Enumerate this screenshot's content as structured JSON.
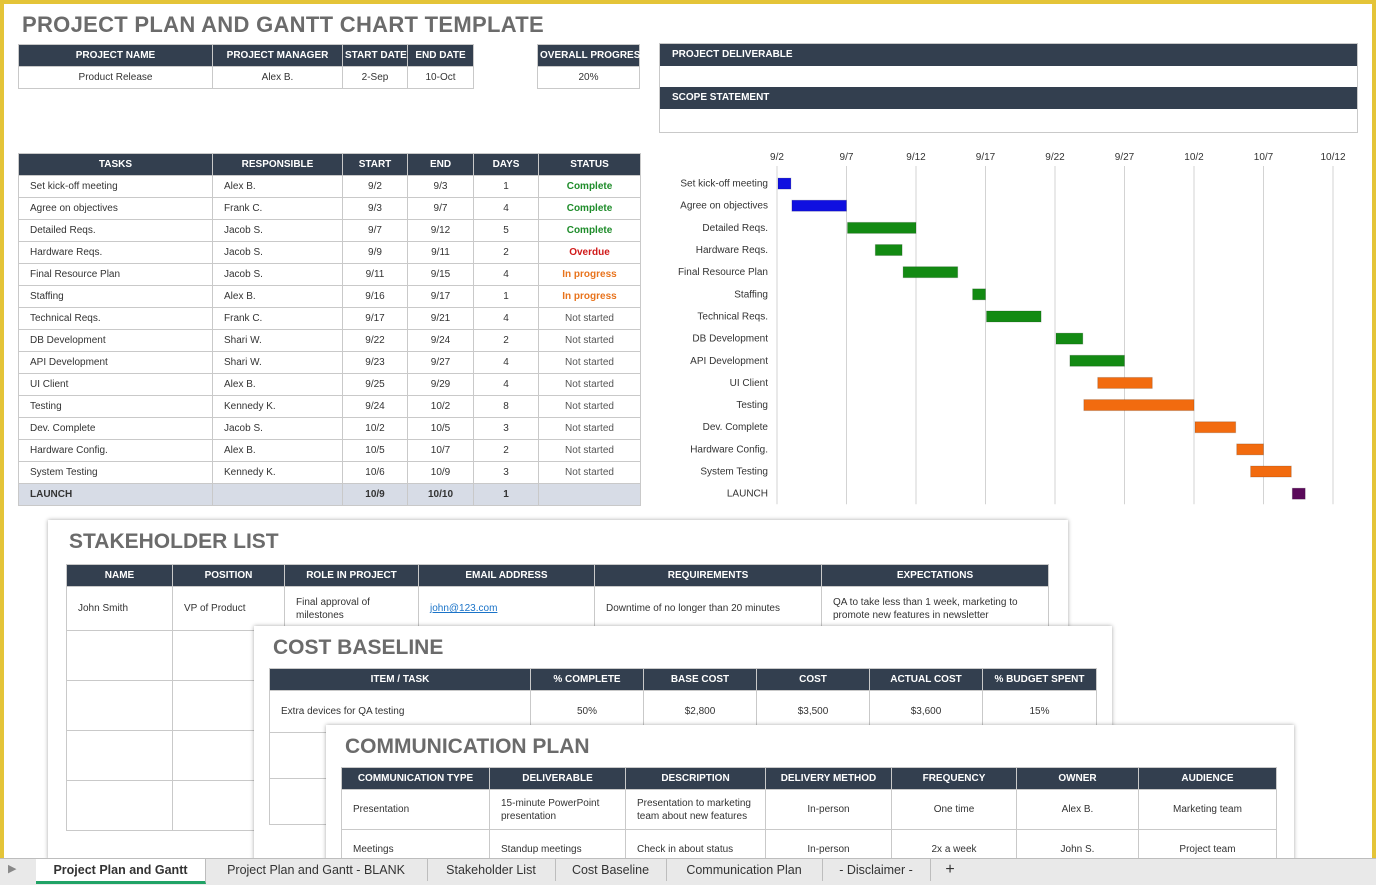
{
  "title": "PROJECT PLAN AND GANTT CHART TEMPLATE",
  "project_info": {
    "headers": [
      "PROJECT NAME",
      "PROJECT MANAGER",
      "START DATE",
      "END DATE"
    ],
    "values": [
      "Product Release",
      "Alex B.",
      "2-Sep",
      "10-Oct"
    ]
  },
  "overall_progress": {
    "header": "OVERALL PROGRESS",
    "value": "20%"
  },
  "deliverable_label": "PROJECT DELIVERABLE",
  "scope_label": "SCOPE STATEMENT",
  "tasks_table": {
    "headers": [
      "TASKS",
      "RESPONSIBLE",
      "START",
      "END",
      "DAYS",
      "STATUS"
    ],
    "rows": [
      {
        "task": "Set kick-off meeting",
        "resp": "Alex B.",
        "start": "9/2",
        "end": "9/3",
        "days": "1",
        "status": "Complete",
        "status_class": "complete"
      },
      {
        "task": "Agree on objectives",
        "resp": "Frank C.",
        "start": "9/3",
        "end": "9/7",
        "days": "4",
        "status": "Complete",
        "status_class": "complete"
      },
      {
        "task": "Detailed Reqs.",
        "resp": "Jacob S.",
        "start": "9/7",
        "end": "9/12",
        "days": "5",
        "status": "Complete",
        "status_class": "complete"
      },
      {
        "task": "Hardware Reqs.",
        "resp": "Jacob S.",
        "start": "9/9",
        "end": "9/11",
        "days": "2",
        "status": "Overdue",
        "status_class": "overdue"
      },
      {
        "task": "Final Resource Plan",
        "resp": "Jacob S.",
        "start": "9/11",
        "end": "9/15",
        "days": "4",
        "status": "In progress",
        "status_class": "progress"
      },
      {
        "task": "Staffing",
        "resp": "Alex B.",
        "start": "9/16",
        "end": "9/17",
        "days": "1",
        "status": "In progress",
        "status_class": "progress"
      },
      {
        "task": "Technical Reqs.",
        "resp": "Frank C.",
        "start": "9/17",
        "end": "9/21",
        "days": "4",
        "status": "Not started",
        "status_class": "notstarted"
      },
      {
        "task": "DB Development",
        "resp": "Shari W.",
        "start": "9/22",
        "end": "9/24",
        "days": "2",
        "status": "Not started",
        "status_class": "notstarted"
      },
      {
        "task": "API Development",
        "resp": "Shari W.",
        "start": "9/23",
        "end": "9/27",
        "days": "4",
        "status": "Not started",
        "status_class": "notstarted"
      },
      {
        "task": "UI Client",
        "resp": "Alex B.",
        "start": "9/25",
        "end": "9/29",
        "days": "4",
        "status": "Not started",
        "status_class": "notstarted"
      },
      {
        "task": "Testing",
        "resp": "Kennedy K.",
        "start": "9/24",
        "end": "10/2",
        "days": "8",
        "status": "Not started",
        "status_class": "notstarted"
      },
      {
        "task": "Dev. Complete",
        "resp": "Jacob S.",
        "start": "10/2",
        "end": "10/5",
        "days": "3",
        "status": "Not started",
        "status_class": "notstarted"
      },
      {
        "task": "Hardware Config.",
        "resp": "Alex B.",
        "start": "10/5",
        "end": "10/7",
        "days": "2",
        "status": "Not started",
        "status_class": "notstarted"
      },
      {
        "task": "System Testing",
        "resp": "Kennedy K.",
        "start": "10/6",
        "end": "10/9",
        "days": "3",
        "status": "Not started",
        "status_class": "notstarted"
      }
    ],
    "launch": {
      "task": "LAUNCH",
      "resp": "",
      "start": "10/9",
      "end": "10/10",
      "days": "1",
      "status": ""
    }
  },
  "chart_data": {
    "type": "bar",
    "orientation": "horizontal-gantt",
    "x_ticks": [
      "9/2",
      "9/7",
      "9/12",
      "9/17",
      "9/22",
      "9/27",
      "10/2",
      "10/7",
      "10/12"
    ],
    "xlim": [
      "9/2",
      "10/12"
    ],
    "grid": true,
    "categories": [
      "Set kick-off meeting",
      "Agree on objectives",
      "Detailed Reqs.",
      "Hardware Reqs.",
      "Final Resource Plan",
      "Staffing",
      "Technical Reqs.",
      "DB Development",
      "API Development",
      "UI Client",
      "Testing",
      "Dev. Complete",
      "Hardware Config.",
      "System Testing",
      "LAUNCH"
    ],
    "start": [
      "9/2",
      "9/3",
      "9/7",
      "9/9",
      "9/11",
      "9/16",
      "9/17",
      "9/22",
      "9/23",
      "9/25",
      "9/24",
      "10/2",
      "10/5",
      "10/6",
      "10/9"
    ],
    "end": [
      "9/3",
      "9/7",
      "9/12",
      "9/11",
      "9/15",
      "9/17",
      "9/21",
      "9/24",
      "9/27",
      "9/29",
      "10/2",
      "10/5",
      "10/7",
      "10/9",
      "10/10"
    ],
    "colors": [
      "#1010e0",
      "#1010e0",
      "#138a13",
      "#138a13",
      "#138a13",
      "#138a13",
      "#138a13",
      "#138a13",
      "#138a13",
      "#f26b0f",
      "#f26b0f",
      "#f26b0f",
      "#f26b0f",
      "#f26b0f",
      "#5a0a5a"
    ]
  },
  "stakeholder": {
    "title": "STAKEHOLDER LIST",
    "headers": [
      "NAME",
      "POSITION",
      "ROLE IN PROJECT",
      "EMAIL ADDRESS",
      "REQUIREMENTS",
      "EXPECTATIONS"
    ],
    "row": {
      "name": "John Smith",
      "position": "VP of Product",
      "role": "Final approval of milestones",
      "email": "john@123.com",
      "requirements": "Downtime of no longer than 20 minutes",
      "expectations": "QA to take less than 1 week, marketing to promote new features in newsletter"
    }
  },
  "cost": {
    "title": "COST BASELINE",
    "headers": [
      "ITEM / TASK",
      "% COMPLETE",
      "BASE COST",
      "COST",
      "ACTUAL COST",
      "% BUDGET SPENT"
    ],
    "row": {
      "item": "Extra devices for QA testing",
      "complete": "50%",
      "base": "$2,800",
      "cost": "$3,500",
      "actual": "$3,600",
      "spent": "15%"
    }
  },
  "comm": {
    "title": "COMMUNICATION PLAN",
    "headers": [
      "COMMUNICATION TYPE",
      "DELIVERABLE",
      "DESCRIPTION",
      "DELIVERY METHOD",
      "FREQUENCY",
      "OWNER",
      "AUDIENCE"
    ],
    "rows": [
      {
        "type": "Presentation",
        "deliverable": "15-minute PowerPoint presentation",
        "description": "Presentation to marketing team about new features",
        "method": "In-person",
        "frequency": "One time",
        "owner": "Alex B.",
        "audience": "Marketing team"
      },
      {
        "type": "Meetings",
        "deliverable": "Standup meetings",
        "description": "Check in about status",
        "method": "In-person",
        "frequency": "2x a week",
        "owner": "John S.",
        "audience": "Project team"
      }
    ]
  },
  "tabs": [
    "Project Plan and Gantt",
    "Project Plan and Gantt - BLANK",
    "Stakeholder List",
    "Cost Baseline",
    "Communication Plan",
    "- Disclaimer -"
  ],
  "add_tab": "+"
}
